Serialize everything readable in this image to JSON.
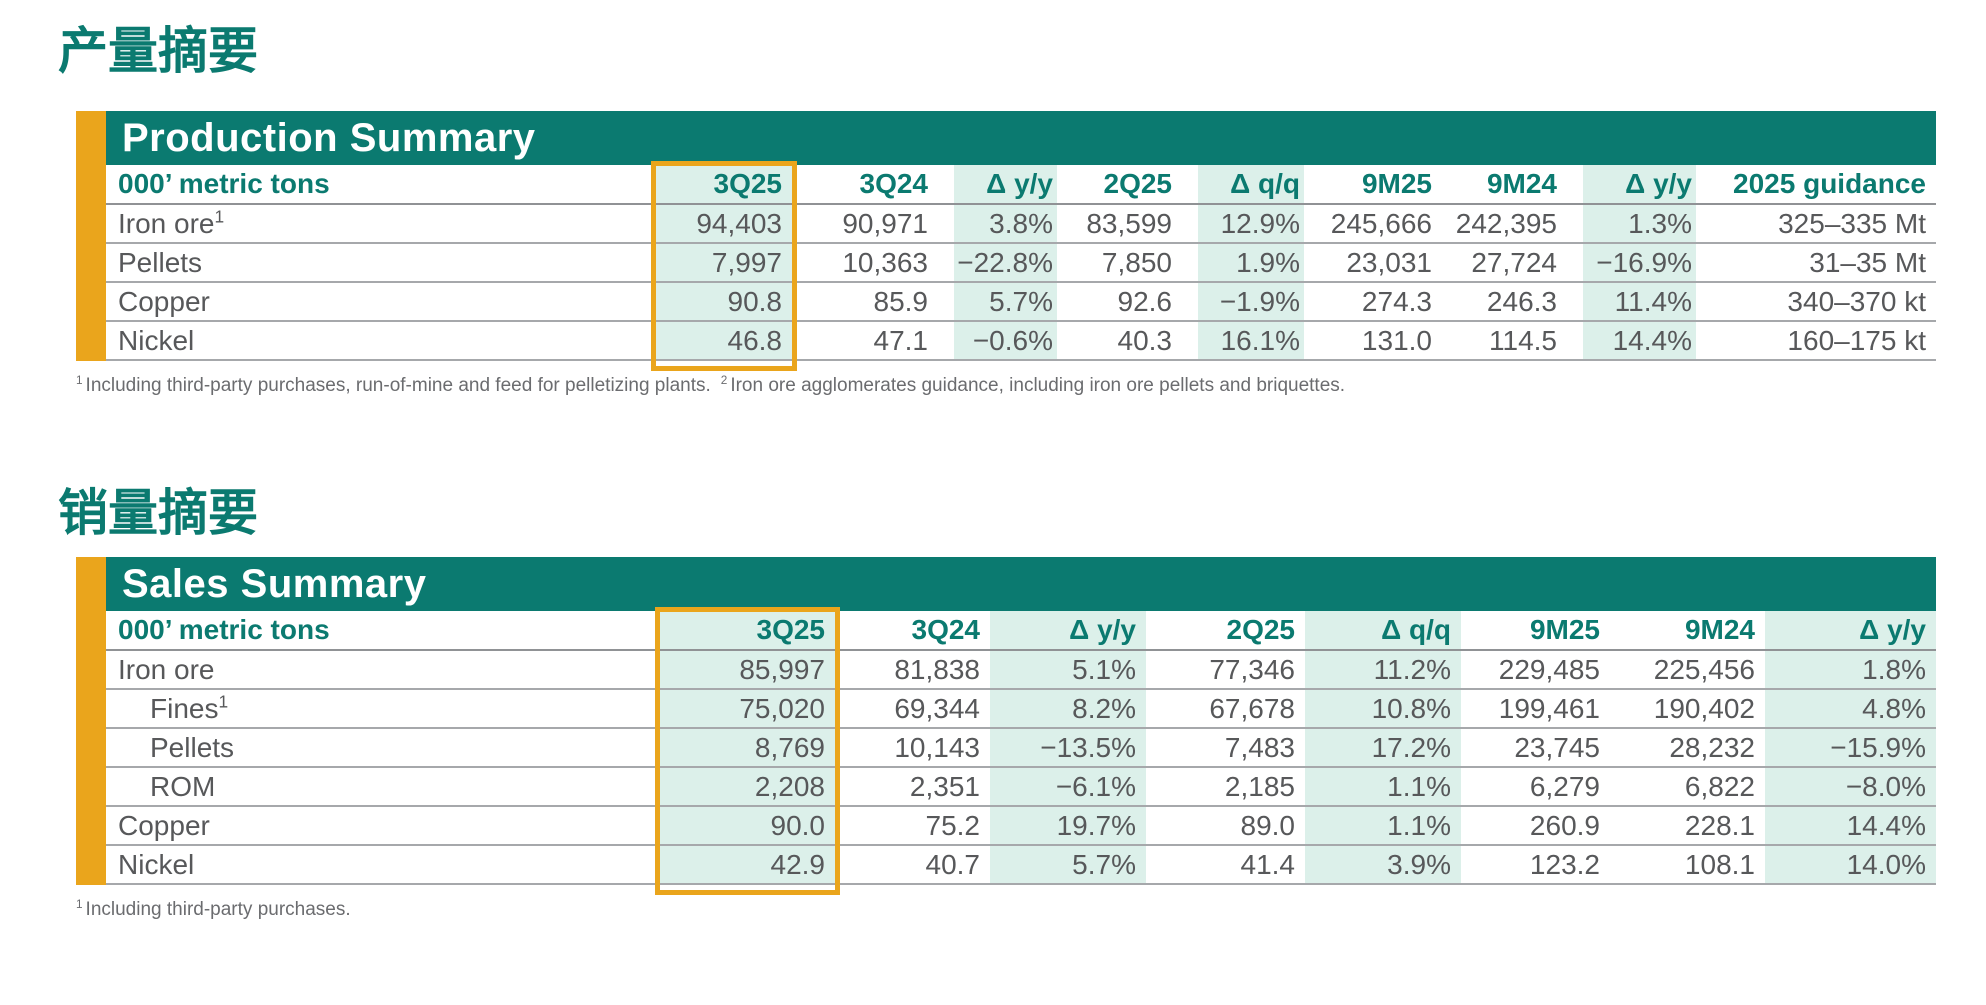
{
  "colors": {
    "teal": "#0B7A70",
    "gold": "#EAA51C",
    "mint": "#DCF0EA"
  },
  "production": {
    "heading_cn": "产量摘要",
    "title": "Production Summary",
    "unit_label": "000’ metric tons",
    "columns": [
      "3Q25",
      "3Q24",
      "Δ y/y",
      "2Q25",
      "Δ q/q",
      "9M25",
      "9M24",
      "Δ y/y",
      "2025 guidance"
    ],
    "rows": [
      {
        "label": "Iron ore",
        "sup": "1",
        "indent": false,
        "values": [
          "94,403",
          "90,971",
          "3.8%",
          "83,599",
          "12.9%",
          "245,666",
          "242,395",
          "1.3%",
          "325–335 Mt"
        ]
      },
      {
        "label": "Pellets",
        "sup": "",
        "indent": false,
        "values": [
          "7,997",
          "10,363",
          "−22.8%",
          "7,850",
          "1.9%",
          "23,031",
          "27,724",
          "−16.9%",
          "31–35 Mt"
        ]
      },
      {
        "label": "Copper",
        "sup": "",
        "indent": false,
        "values": [
          "90.8",
          "85.9",
          "5.7%",
          "92.6",
          "−1.9%",
          "274.3",
          "246.3",
          "11.4%",
          "340–370 kt"
        ]
      },
      {
        "label": "Nickel",
        "sup": "",
        "indent": false,
        "values": [
          "46.8",
          "47.1",
          "−0.6%",
          "40.3",
          "16.1%",
          "131.0",
          "114.5",
          "14.4%",
          "160–175 kt"
        ]
      }
    ],
    "footnotes": [
      {
        "sup": "1",
        "text": "Including third-party purchases, run-of-mine and feed for pelletizing plants."
      },
      {
        "sup": "2",
        "text": "Iron ore agglomerates guidance, including iron ore pellets and briquettes."
      }
    ]
  },
  "sales": {
    "heading_cn": "销量摘要",
    "title": "Sales Summary",
    "unit_label": "000’ metric tons",
    "columns": [
      "3Q25",
      "3Q24",
      "Δ y/y",
      "2Q25",
      "Δ q/q",
      "9M25",
      "9M24",
      "Δ y/y"
    ],
    "rows": [
      {
        "label": "Iron ore",
        "sup": "",
        "indent": false,
        "values": [
          "85,997",
          "81,838",
          "5.1%",
          "77,346",
          "11.2%",
          "229,485",
          "225,456",
          "1.8%"
        ]
      },
      {
        "label": "Fines",
        "sup": "1",
        "indent": true,
        "values": [
          "75,020",
          "69,344",
          "8.2%",
          "67,678",
          "10.8%",
          "199,461",
          "190,402",
          "4.8%"
        ]
      },
      {
        "label": "Pellets",
        "sup": "",
        "indent": true,
        "values": [
          "8,769",
          "10,143",
          "−13.5%",
          "7,483",
          "17.2%",
          "23,745",
          "28,232",
          "−15.9%"
        ]
      },
      {
        "label": "ROM",
        "sup": "",
        "indent": true,
        "values": [
          "2,208",
          "2,351",
          "−6.1%",
          "2,185",
          "1.1%",
          "6,279",
          "6,822",
          "−8.0%"
        ]
      },
      {
        "label": "Copper",
        "sup": "",
        "indent": false,
        "values": [
          "90.0",
          "75.2",
          "19.7%",
          "89.0",
          "1.1%",
          "260.9",
          "228.1",
          "14.4%"
        ]
      },
      {
        "label": "Nickel",
        "sup": "",
        "indent": false,
        "values": [
          "42.9",
          "40.7",
          "5.7%",
          "41.4",
          "3.9%",
          "123.2",
          "108.1",
          "14.0%"
        ]
      }
    ],
    "footnotes": [
      {
        "sup": "1",
        "text": "Including third-party purchases."
      }
    ]
  }
}
